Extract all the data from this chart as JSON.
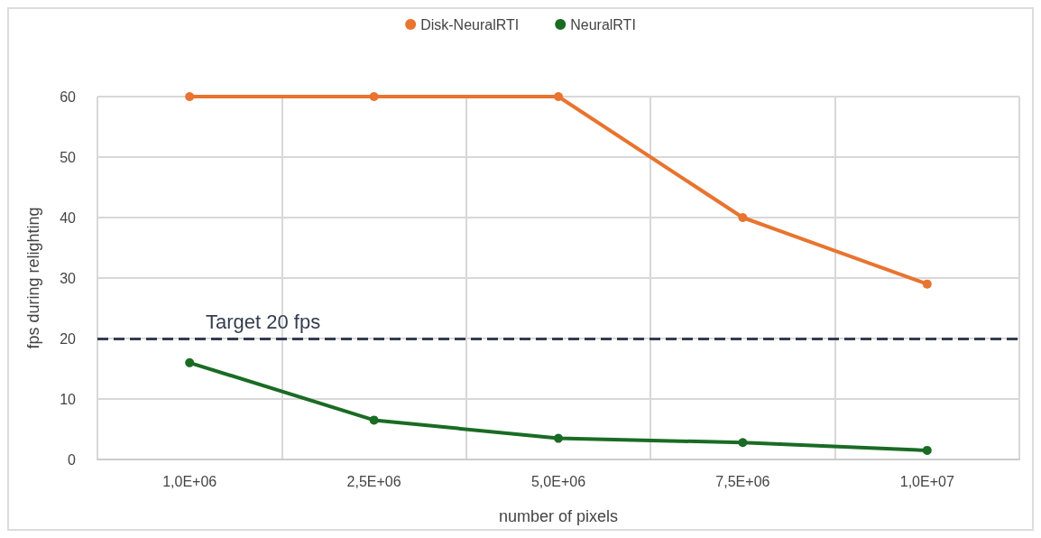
{
  "chart_data": {
    "type": "line",
    "xlabel": "number of pixels",
    "ylabel": "fps during relighting",
    "categories": [
      "1,0E+06",
      "2,5E+06",
      "5,0E+06",
      "7,5E+06",
      "1,0E+07"
    ],
    "series": [
      {
        "name": "Disk-NeuralRTI",
        "color": "#e8742f",
        "values": [
          60,
          60,
          60,
          40,
          29
        ]
      },
      {
        "name": "NeuralRTI",
        "color": "#1a6b24",
        "values": [
          16,
          6.5,
          3.5,
          2.8,
          1.5
        ]
      }
    ],
    "ylim": [
      0,
      60
    ],
    "yticks": [
      0,
      10,
      20,
      30,
      40,
      50,
      60
    ],
    "grid": true,
    "legend": "top",
    "marker": "circle",
    "line_style": "solid",
    "ref_lines": [
      {
        "axis": "y",
        "value": 20,
        "label": "Target 20 fps",
        "color": "#333d4f",
        "line_style": "dashed"
      }
    ]
  }
}
